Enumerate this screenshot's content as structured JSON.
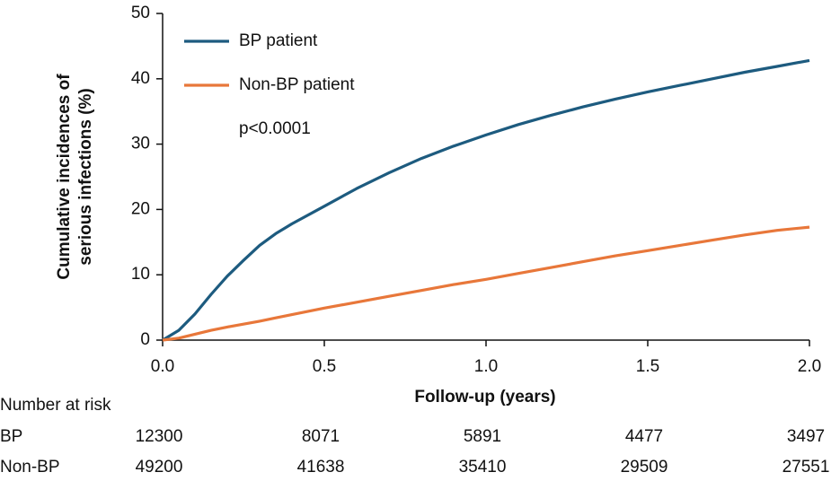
{
  "chart_data": {
    "type": "line",
    "y_label": [
      "Cumulative incidences of",
      "serious  infections (%)"
    ],
    "x_label": "Follow-up (years)",
    "annotation": "p<0.0001",
    "legend": "upper left",
    "x": [
      0,
      0.05,
      0.1,
      0.15,
      0.2,
      0.25,
      0.3,
      0.35,
      0.4,
      0.5,
      0.6,
      0.7,
      0.8,
      0.9,
      1.0,
      1.1,
      1.2,
      1.3,
      1.4,
      1.5,
      1.6,
      1.7,
      1.8,
      1.9,
      2.0
    ],
    "series": [
      {
        "name": "BP patient",
        "color": "#1d5b7f",
        "values": [
          0,
          1.5,
          4,
          7,
          9.8,
          12.2,
          14.5,
          16.3,
          17.8,
          20.5,
          23.2,
          25.6,
          27.8,
          29.7,
          31.4,
          33.0,
          34.4,
          35.7,
          36.9,
          38.0,
          39.0,
          40.0,
          41.0,
          41.9,
          42.8
        ]
      },
      {
        "name": "Non-BP patient",
        "color": "#e8773a",
        "values": [
          0,
          0.3,
          0.9,
          1.5,
          2.0,
          2.45,
          2.9,
          3.4,
          3.9,
          4.9,
          5.8,
          6.7,
          7.6,
          8.5,
          9.3,
          10.2,
          11.1,
          12.0,
          12.9,
          13.7,
          14.5,
          15.3,
          16.1,
          16.8,
          17.3
        ]
      }
    ],
    "xlim": [
      0,
      2
    ],
    "xticks": [
      {
        "value": 0,
        "label": "0.0"
      },
      0.5,
      {
        "value": 1,
        "label": "1.0"
      },
      1.5,
      {
        "value": 2,
        "label": "2.0"
      }
    ],
    "ylim": [
      0,
      50
    ],
    "yticks": [
      0,
      10,
      20,
      30,
      40,
      50
    ],
    "risk_table": {
      "title": "Number at risk",
      "rows": [
        {
          "label": "BP",
          "values": [
            12300,
            8071,
            5891,
            4477,
            3497
          ]
        },
        {
          "label": "Non-BP",
          "values": [
            49200,
            41638,
            35410,
            29509,
            27551
          ]
        }
      ]
    }
  }
}
